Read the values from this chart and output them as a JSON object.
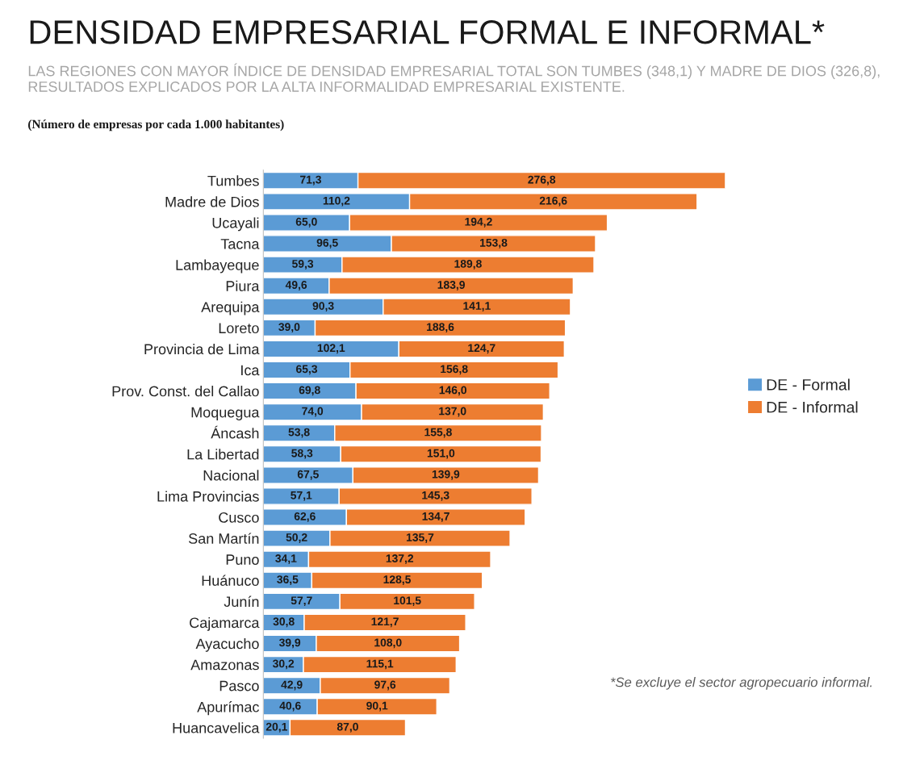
{
  "chart_data": {
    "type": "bar",
    "orientation": "horizontal",
    "stacked": true,
    "title": "DENSIDAD EMPRESARIAL FORMAL E INFORMAL*",
    "subtitle": "LAS REGIONES CON MAYOR ÍNDICE DE DENSIDAD EMPRESARIAL TOTAL SON TUMBES (348,1) Y MADRE DE DIOS (326,8), RESULTADOS EXPLICADOS POR LA ALTA INFORMALIDAD EMPRESARIAL EXISTENTE.",
    "annotations": [
      "(Número de empresas por cada 1.000 habitantes)",
      "*Se excluye el sector agropecuario informal."
    ],
    "categories": [
      "Tumbes",
      "Madre de Dios",
      "Ucayali",
      "Tacna",
      "Lambayeque",
      "Piura",
      "Arequipa",
      "Loreto",
      "Provincia de Lima",
      "Ica",
      "Prov. Const. del Callao",
      "Moquegua",
      "Áncash",
      "La Libertad",
      "Nacional",
      "Lima Provincias",
      "Cusco",
      "San Martín",
      "Puno",
      "Huánuco",
      "Junín",
      "Cajamarca",
      "Ayacucho",
      "Amazonas",
      "Pasco",
      "Apurímac",
      "Huancavelica"
    ],
    "series": [
      {
        "name": "DE - Formal",
        "color": "#5b9bd5",
        "values": [
          71.3,
          110.2,
          65.0,
          96.5,
          59.3,
          49.6,
          90.3,
          39.0,
          102.1,
          65.3,
          69.8,
          74.0,
          53.8,
          58.3,
          67.5,
          57.1,
          62.6,
          50.2,
          34.1,
          36.5,
          57.7,
          30.8,
          39.9,
          30.2,
          42.9,
          40.6,
          20.1
        ],
        "value_labels": [
          "71,3",
          "110,2",
          "65,0",
          "96,5",
          "59,3",
          "49,6",
          "90,3",
          "39,0",
          "102,1",
          "65,3",
          "69,8",
          "74,0",
          "53,8",
          "58,3",
          "67,5",
          "57,1",
          "62,6",
          "50,2",
          "34,1",
          "36,5",
          "57,7",
          "30,8",
          "39,9",
          "30,2",
          "42,9",
          "40,6",
          "20,1"
        ]
      },
      {
        "name": "DE - Informal",
        "color": "#ed7d31",
        "values": [
          276.8,
          216.6,
          194.2,
          153.8,
          189.8,
          183.9,
          141.1,
          188.6,
          124.7,
          156.8,
          146.0,
          137.0,
          155.8,
          151.0,
          139.9,
          145.3,
          134.7,
          135.7,
          137.2,
          128.5,
          101.5,
          121.7,
          108.0,
          115.1,
          97.6,
          90.1,
          87.0
        ],
        "value_labels": [
          "276,8",
          "216,6",
          "194,2",
          "153,8",
          "189,8",
          "183,9",
          "141,1",
          "188,6",
          "124,7",
          "156,8",
          "146,0",
          "137,0",
          "155,8",
          "151,0",
          "139,9",
          "145,3",
          "134,7",
          "135,7",
          "137,2",
          "128,5",
          "101,5",
          "121,7",
          "108,0",
          "115,1",
          "97,6",
          "90,1",
          "87,0"
        ]
      }
    ],
    "legend": "right",
    "tick_labels": "y",
    "grid": false
  }
}
